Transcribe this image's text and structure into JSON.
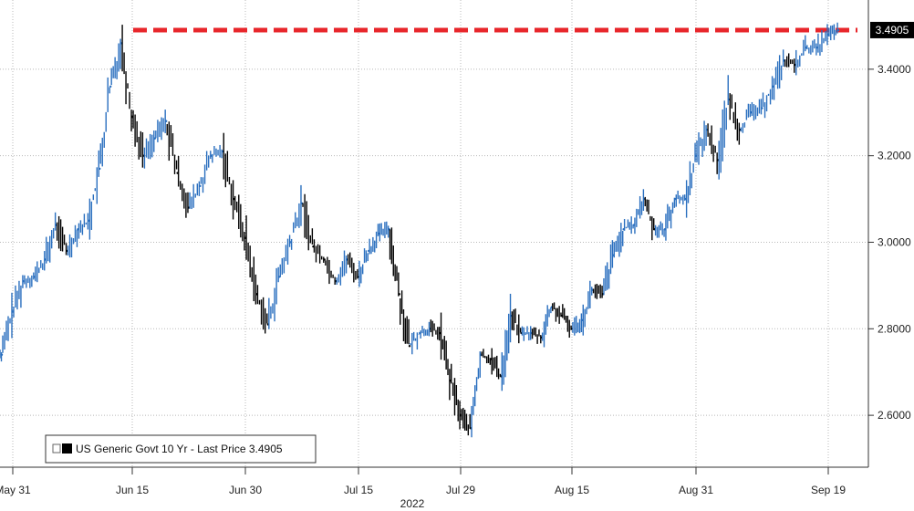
{
  "chart_data": {
    "type": "line",
    "title": "",
    "xlabel": "",
    "ylabel": "",
    "year_label": "2022",
    "x_ticks": [
      "May 31",
      "Jun 15",
      "Jun 30",
      "Jul 15",
      "Jul 29",
      "Aug 15",
      "Aug 31",
      "Sep 19"
    ],
    "y_ticks": [
      "2.6000",
      "2.8000",
      "3.0000",
      "3.2000",
      "3.4000"
    ],
    "ylim": [
      2.48,
      3.56
    ],
    "grid": true,
    "legend_placement": "bottom-left",
    "last_price_label": "3.4905",
    "reference_line": {
      "value": 3.4905,
      "color": "#e8262b"
    },
    "series": [
      {
        "name": "US Generic Govt 10 Yr - Last Price 3.4905",
        "legend_label": "US Generic Govt 10 Yr - Last Price 3.4905",
        "color_up": "#2a6fbf",
        "color_down": "#000000",
        "x": [
          "May 27",
          "May 31",
          "Jun 1",
          "Jun 2",
          "Jun 3",
          "Jun 6",
          "Jun 7",
          "Jun 8",
          "Jun 9",
          "Jun 10",
          "Jun 13",
          "Jun 14",
          "Jun 15",
          "Jun 16",
          "Jun 17",
          "Jun 21",
          "Jun 22",
          "Jun 23",
          "Jun 24",
          "Jun 27",
          "Jun 28",
          "Jun 29",
          "Jun 30",
          "Jul 1",
          "Jul 5",
          "Jul 6",
          "Jul 7",
          "Jul 8",
          "Jul 11",
          "Jul 12",
          "Jul 13",
          "Jul 14",
          "Jul 15",
          "Jul 18",
          "Jul 19",
          "Jul 20",
          "Jul 21",
          "Jul 22",
          "Jul 25",
          "Jul 26",
          "Jul 27",
          "Jul 28",
          "Jul 29",
          "Aug 1",
          "Aug 2",
          "Aug 3",
          "Aug 4",
          "Aug 5",
          "Aug 8",
          "Aug 9",
          "Aug 10",
          "Aug 11",
          "Aug 12",
          "Aug 15",
          "Aug 16",
          "Aug 17",
          "Aug 18",
          "Aug 19",
          "Aug 22",
          "Aug 23",
          "Aug 24",
          "Aug 25",
          "Aug 26",
          "Aug 29",
          "Aug 30",
          "Aug 31",
          "Sep 1",
          "Sep 2",
          "Sep 6",
          "Sep 7",
          "Sep 8",
          "Sep 9",
          "Sep 12",
          "Sep 13",
          "Sep 14",
          "Sep 15",
          "Sep 16",
          "Sep 19",
          "Sep 20"
        ],
        "values": [
          2.74,
          2.84,
          2.91,
          2.92,
          2.96,
          3.04,
          2.98,
          3.03,
          3.05,
          3.17,
          3.36,
          3.46,
          3.29,
          3.2,
          3.24,
          3.28,
          3.16,
          3.08,
          3.13,
          3.2,
          3.21,
          3.1,
          3.01,
          2.88,
          2.81,
          2.92,
          3.0,
          3.09,
          2.99,
          2.96,
          2.91,
          2.96,
          2.92,
          2.98,
          3.02,
          3.03,
          2.88,
          2.76,
          2.79,
          2.8,
          2.79,
          2.68,
          2.6,
          2.57,
          2.74,
          2.73,
          2.69,
          2.83,
          2.79,
          2.79,
          2.78,
          2.85,
          2.83,
          2.8,
          2.82,
          2.89,
          2.88,
          2.97,
          3.03,
          3.04,
          3.1,
          3.03,
          3.03,
          3.1,
          3.1,
          3.2,
          3.26,
          3.19,
          3.33,
          3.26,
          3.3,
          3.31,
          3.36,
          3.42,
          3.41,
          3.45,
          3.45,
          3.48,
          3.49
        ]
      }
    ]
  }
}
